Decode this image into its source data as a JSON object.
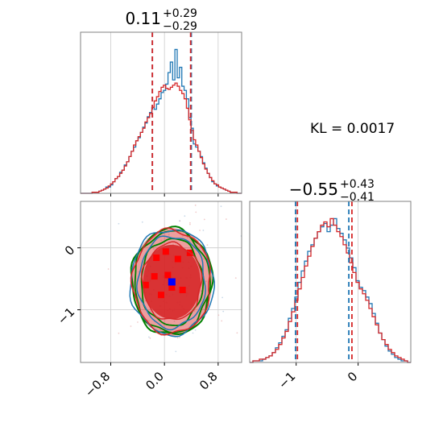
{
  "chart_data": {
    "type": "corner",
    "kl_text": "KL = 0.0017",
    "colors": {
      "blue": "#1f77b4",
      "red": "#d62728",
      "green": "#008000",
      "grid": "#cccccc",
      "frame": "#808080"
    },
    "params": [
      {
        "title_main": "0.11",
        "title_sup": "+0.29",
        "title_sub": "−0.29",
        "xlim": [
          -1.25,
          1.15
        ],
        "xticks": [
          -0.8,
          0.0,
          0.8
        ],
        "xtick_labels": [
          "−0.8",
          "0.0",
          "0.8"
        ],
        "quantiles_blue": [
          -0.18,
          0.4
        ],
        "quantiles_red": [
          -0.18,
          0.39
        ],
        "series": [
          {
            "name": "",
            "color": "blue",
            "values": [
              0,
              0,
              0,
              0,
              0,
              1,
              1,
              1,
              2,
              3,
              4,
              6,
              6,
              8,
              11,
              14,
              16,
              20,
              22,
              27,
              30,
              35,
              40,
              44,
              50,
              53,
              58,
              63,
              67,
              73,
              77,
              82,
              80,
              85,
              90,
              96,
              98,
              104,
              115,
              125,
              108,
              137,
              110,
              120,
              102,
              98,
              90,
              72,
              62,
              47,
              44,
              40,
              35,
              29,
              24,
              19,
              15,
              11,
              9,
              7,
              6,
              5,
              4,
              3,
              2,
              1,
              1,
              1,
              0,
              0
            ]
          },
          {
            "name": "",
            "color": "red",
            "values": [
              0,
              0,
              0,
              0,
              0,
              1,
              1,
              1,
              2,
              3,
              4,
              5,
              7,
              9,
              11,
              14,
              16,
              19,
              22,
              26,
              30,
              35,
              40,
              46,
              50,
              54,
              58,
              62,
              68,
              72,
              76,
              82,
              88,
              92,
              97,
              101,
              103,
              100,
              99,
              101,
              103,
              105,
              102,
              98,
              95,
              90,
              81,
              70,
              60,
              51,
              46,
              40,
              34,
              28,
              23,
              19,
              15,
              12,
              9,
              8,
              6,
              5,
              4,
              3,
              2,
              1,
              1,
              1,
              0,
              0
            ]
          }
        ]
      },
      {
        "title_main": "−0.55",
        "title_sup": "+0.43",
        "title_sub": "−0.41",
        "xlim": [
          -1.75,
          0.85
        ],
        "xticks": [
          -1,
          0
        ],
        "xtick_labels": [
          "−1",
          "0"
        ],
        "quantiles_blue": [
          -1.01,
          -0.15
        ],
        "quantiles_red": [
          -0.98,
          -0.1
        ],
        "series": [
          {
            "name": "",
            "color": "blue",
            "values": [
              0,
              1,
              1,
              1,
              2,
              3,
              4,
              6,
              9,
              12,
              16,
              20,
              27,
              33,
              40,
              49,
              56,
              62,
              68,
              72,
              76,
              80,
              83,
              85,
              80,
              84,
              88,
              82,
              79,
              75,
              70,
              64,
              58,
              50,
              46,
              44,
              40,
              36,
              30,
              24,
              18,
              14,
              10,
              7,
              5,
              3,
              2,
              1,
              1,
              0
            ]
          },
          {
            "name": "",
            "color": "red",
            "values": [
              0,
              1,
              1,
              2,
              2,
              3,
              4,
              6,
              8,
              11,
              15,
              19,
              25,
              31,
              38,
              45,
              52,
              59,
              65,
              71,
              76,
              80,
              84,
              86,
              83,
              88,
              84,
              80,
              77,
              72,
              67,
              61,
              55,
              49,
              45,
              42,
              38,
              33,
              28,
              23,
              18,
              14,
              11,
              8,
              6,
              4,
              3,
              2,
              1,
              0
            ]
          }
        ]
      }
    ],
    "contour": {
      "xlim": [
        -1.25,
        1.15
      ],
      "ylim": [
        -1.85,
        0.75
      ],
      "yticks": [
        0,
        -1
      ],
      "ytick_labels": [
        "0",
        "−1"
      ],
      "center": [
        0.11,
        -0.55
      ],
      "filled_levels": [
        {
          "sx": 0.6,
          "sy": 0.87,
          "opacity": 0.45
        },
        {
          "sx": 0.43,
          "sy": 0.6,
          "opacity": 0.9
        }
      ],
      "line_levels": [
        {
          "color": "green",
          "sx": 0.6,
          "sy": 0.86,
          "width": 2.0
        },
        {
          "color": "green",
          "sx": 0.56,
          "sy": 0.82,
          "width": 1.8
        },
        {
          "color": "green",
          "sx": 0.46,
          "sy": 0.7,
          "width": 1.8
        },
        {
          "color": "blue",
          "sx": 0.62,
          "sy": 0.85,
          "width": 1.5
        },
        {
          "color": "blue",
          "sx": 0.5,
          "sy": 0.74,
          "width": 1.5
        },
        {
          "color": "red",
          "sx": 0.58,
          "sy": 0.84,
          "width": 1.5
        },
        {
          "color": "red",
          "sx": 0.44,
          "sy": 0.62,
          "width": 1.5
        }
      ],
      "red_squares": [
        [
          -0.12,
          -0.16
        ],
        [
          0.02,
          -0.06
        ],
        [
          0.2,
          -0.18
        ],
        [
          0.38,
          -0.08
        ],
        [
          -0.15,
          -0.46
        ],
        [
          -0.28,
          -0.6
        ],
        [
          0.05,
          -0.44
        ],
        [
          -0.05,
          -0.76
        ],
        [
          0.27,
          -0.68
        ],
        [
          0.11,
          -0.64
        ]
      ],
      "blue_square": [
        0.11,
        -0.55
      ]
    }
  }
}
